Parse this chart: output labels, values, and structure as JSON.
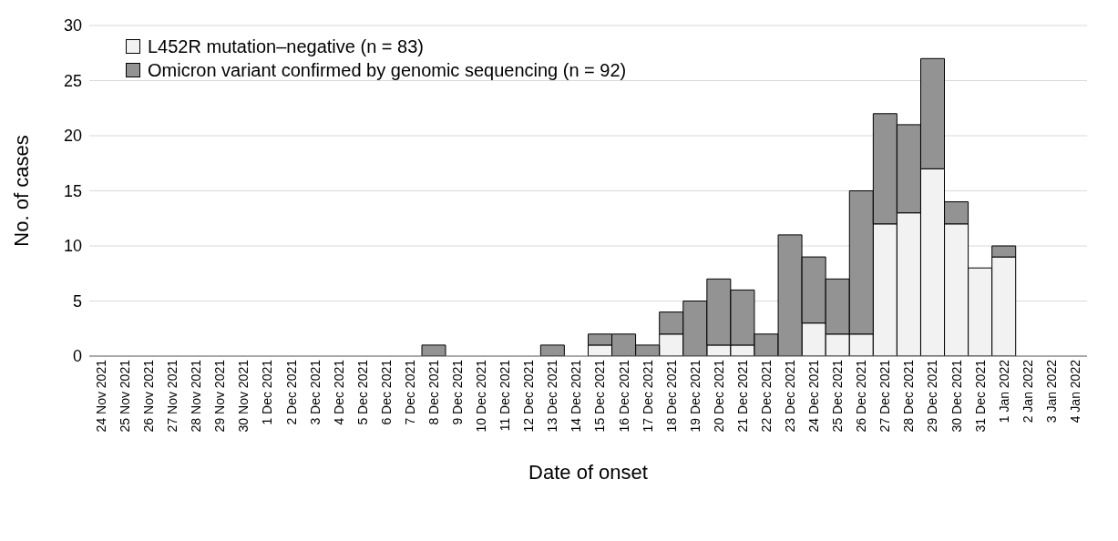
{
  "chart_data": {
    "type": "bar",
    "stacked": true,
    "xlabel": "Date of onset",
    "ylabel": "No. of cases",
    "categories": [
      "24 Nov 2021",
      "25 Nov 2021",
      "26 Nov 2021",
      "27 Nov 2021",
      "28 Nov 2021",
      "29 Nov 2021",
      "30 Nov 2021",
      "1 Dec 2021",
      "2 Dec 2021",
      "3 Dec 2021",
      "4 Dec 2021",
      "5 Dec 2021",
      "6 Dec 2021",
      "7 Dec 2021",
      "8 Dec 2021",
      "9 Dec 2021",
      "10 Dec 2021",
      "11 Dec 2021",
      "12 Dec 2021",
      "13 Dec 2021",
      "14 Dec 2021",
      "15 Dec 2021",
      "16 Dec 2021",
      "17 Dec 2021",
      "18 Dec 2021",
      "19 Dec 2021",
      "20 Dec 2021",
      "21 Dec 2021",
      "22 Dec 2021",
      "23 Dec 2021",
      "24 Dec 2021",
      "25 Dec 2021",
      "26 Dec 2021",
      "27 Dec 2021",
      "28 Dec 2021",
      "29 Dec 2021",
      "30 Dec 2021",
      "31 Dec 2021",
      "1 Jan 2022",
      "2 Jan 2022",
      "3 Jan 2022",
      "4 Jan 2022"
    ],
    "series": [
      {
        "name": "L452R mutation–negative (n = 83)",
        "color": "#f2f2f2",
        "values": [
          0,
          0,
          0,
          0,
          0,
          0,
          0,
          0,
          0,
          0,
          0,
          0,
          0,
          0,
          0,
          0,
          0,
          0,
          0,
          0,
          0,
          1,
          0,
          0,
          2,
          0,
          1,
          1,
          0,
          0,
          3,
          2,
          2,
          12,
          13,
          17,
          12,
          8,
          9,
          0,
          0,
          0
        ]
      },
      {
        "name": "Omicron variant confirmed by genomic sequencing (n = 92)",
        "color": "#939393",
        "values": [
          0,
          0,
          0,
          0,
          0,
          0,
          0,
          0,
          0,
          0,
          0,
          0,
          0,
          0,
          1,
          0,
          0,
          0,
          0,
          1,
          0,
          1,
          2,
          1,
          2,
          5,
          6,
          5,
          2,
          11,
          6,
          5,
          13,
          10,
          8,
          10,
          2,
          0,
          1,
          0,
          0,
          0
        ]
      }
    ],
    "ylim": [
      0,
      30
    ],
    "yticks": [
      0,
      5,
      10,
      15,
      20,
      25,
      30
    ],
    "grid": "y",
    "legend": "top left"
  }
}
